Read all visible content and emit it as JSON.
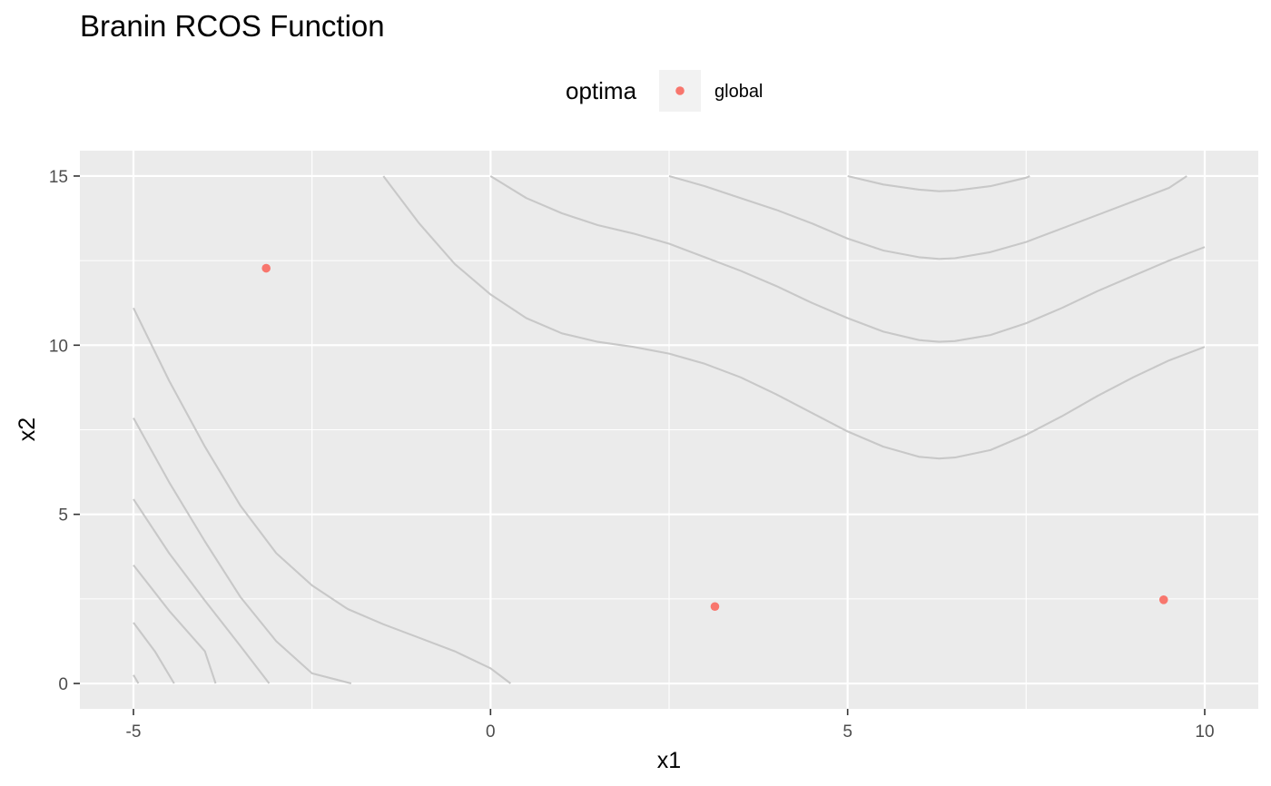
{
  "chart_data": {
    "type": "contour",
    "title": "Branin RCOS Function",
    "xlabel": "x1",
    "ylabel": "x2",
    "xlim": [
      -5.75,
      10.75
    ],
    "ylim": [
      -0.75,
      15.75
    ],
    "x_ticks": [
      -5,
      0,
      5,
      10
    ],
    "y_ticks": [
      0,
      5,
      10,
      15
    ],
    "x_tick_labels": [
      "-5",
      "0",
      "5",
      "10"
    ],
    "y_tick_labels": [
      "0",
      "5",
      "10",
      "15"
    ],
    "x_minor": [
      -2.5,
      2.5,
      7.5
    ],
    "y_minor": [
      2.5,
      7.5,
      12.5
    ],
    "grid": true,
    "legend": {
      "title": "optima",
      "position": "top",
      "entries": [
        {
          "label": "global",
          "color": "#F8766D"
        }
      ]
    },
    "colors": {
      "panel": "#EBEBEB",
      "grid": "#FFFFFF",
      "contour": "#C8C8C8",
      "point": "#F8766D",
      "legend_key": "#F2F2F2",
      "tick_mark": "#333333"
    },
    "points": [
      {
        "x": -3.1416,
        "y": 12.275
      },
      {
        "x": 3.1416,
        "y": 2.275
      },
      {
        "x": 9.4248,
        "y": 2.475
      }
    ],
    "contours": [
      [
        [
          -5.0,
          0.25
        ],
        [
          -4.93,
          0.0
        ]
      ],
      [
        [
          -5.0,
          1.8
        ],
        [
          -4.7,
          0.95
        ],
        [
          -4.43,
          0.0
        ]
      ],
      [
        [
          -5.0,
          3.5
        ],
        [
          -4.5,
          2.15
        ],
        [
          -4.0,
          0.95
        ],
        [
          -3.85,
          0.0
        ]
      ],
      [
        [
          -5.0,
          5.45
        ],
        [
          -4.5,
          3.85
        ],
        [
          -4.0,
          2.45
        ],
        [
          -3.5,
          1.1
        ],
        [
          -3.1,
          0.0
        ]
      ],
      [
        [
          -5.0,
          7.85
        ],
        [
          -4.5,
          5.95
        ],
        [
          -4.0,
          4.2
        ],
        [
          -3.5,
          2.55
        ],
        [
          -3.0,
          1.25
        ],
        [
          -2.5,
          0.3
        ],
        [
          -1.95,
          0.0
        ]
      ],
      [
        [
          -5.0,
          11.1
        ],
        [
          -4.5,
          8.95
        ],
        [
          -4.0,
          7.0
        ],
        [
          -3.5,
          5.25
        ],
        [
          -3.0,
          3.85
        ],
        [
          -2.5,
          2.9
        ],
        [
          -2.0,
          2.2
        ],
        [
          -1.5,
          1.75
        ],
        [
          -1.0,
          1.35
        ],
        [
          -0.5,
          0.95
        ],
        [
          0.0,
          0.45
        ],
        [
          0.28,
          0.0
        ]
      ],
      [
        [
          -1.5,
          15.0
        ],
        [
          -1.0,
          13.6
        ],
        [
          -0.5,
          12.4
        ],
        [
          0.0,
          11.5
        ],
        [
          0.5,
          10.8
        ],
        [
          1.0,
          10.35
        ],
        [
          1.5,
          10.1
        ],
        [
          2.0,
          9.95
        ],
        [
          2.5,
          9.75
        ],
        [
          3.0,
          9.45
        ],
        [
          3.5,
          9.05
        ],
        [
          4.0,
          8.55
        ],
        [
          4.5,
          8.0
        ],
        [
          5.0,
          7.45
        ],
        [
          5.5,
          7.0
        ],
        [
          6.0,
          6.7
        ],
        [
          6.28,
          6.65
        ],
        [
          6.5,
          6.68
        ],
        [
          7.0,
          6.9
        ],
        [
          7.5,
          7.35
        ],
        [
          8.0,
          7.9
        ],
        [
          8.5,
          8.5
        ],
        [
          9.0,
          9.05
        ],
        [
          9.5,
          9.55
        ],
        [
          10.0,
          9.95
        ]
      ],
      [
        [
          0.0,
          15.0
        ],
        [
          0.5,
          14.35
        ],
        [
          1.0,
          13.9
        ],
        [
          1.5,
          13.55
        ],
        [
          2.0,
          13.3
        ],
        [
          2.5,
          13.0
        ],
        [
          3.0,
          12.6
        ],
        [
          3.5,
          12.2
        ],
        [
          4.0,
          11.75
        ],
        [
          4.5,
          11.25
        ],
        [
          5.0,
          10.8
        ],
        [
          5.5,
          10.4
        ],
        [
          6.0,
          10.15
        ],
        [
          6.28,
          10.1
        ],
        [
          6.5,
          10.12
        ],
        [
          7.0,
          10.3
        ],
        [
          7.5,
          10.65
        ],
        [
          8.0,
          11.1
        ],
        [
          8.5,
          11.6
        ],
        [
          9.0,
          12.05
        ],
        [
          9.5,
          12.5
        ],
        [
          10.0,
          12.9
        ]
      ],
      [
        [
          2.5,
          15.0
        ],
        [
          3.0,
          14.7
        ],
        [
          3.5,
          14.35
        ],
        [
          4.0,
          14.0
        ],
        [
          4.5,
          13.6
        ],
        [
          5.0,
          13.15
        ],
        [
          5.5,
          12.8
        ],
        [
          6.0,
          12.6
        ],
        [
          6.28,
          12.55
        ],
        [
          6.5,
          12.57
        ],
        [
          7.0,
          12.75
        ],
        [
          7.5,
          13.05
        ],
        [
          8.0,
          13.45
        ],
        [
          8.5,
          13.85
        ],
        [
          9.0,
          14.25
        ],
        [
          9.5,
          14.65
        ],
        [
          9.75,
          15.0
        ]
      ],
      [
        [
          5.0,
          15.0
        ],
        [
          5.5,
          14.75
        ],
        [
          6.0,
          14.6
        ],
        [
          6.28,
          14.55
        ],
        [
          6.5,
          14.57
        ],
        [
          7.0,
          14.7
        ],
        [
          7.5,
          14.95
        ],
        [
          7.55,
          15.0
        ]
      ]
    ]
  }
}
